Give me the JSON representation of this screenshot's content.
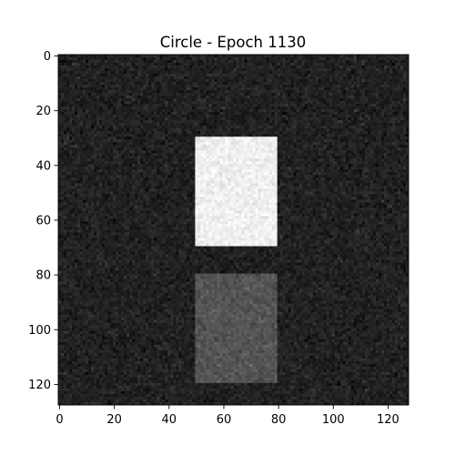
{
  "chart_data": {
    "type": "heatmap",
    "title": "Circle - Epoch 1130",
    "xlabel": "",
    "ylabel": "",
    "image_size": [
      128,
      128
    ],
    "colormap": "gray",
    "value_range": [
      0,
      1
    ],
    "xlim": [
      -0.5,
      127.5
    ],
    "ylim": [
      127.5,
      -0.5
    ],
    "x_ticks": [
      0,
      20,
      40,
      60,
      80,
      100,
      120
    ],
    "y_ticks": [
      0,
      20,
      40,
      60,
      80,
      100,
      120
    ],
    "background": {
      "mean_intensity": 0.13,
      "noise_std": 0.035
    },
    "regions": [
      {
        "name": "bright rectangle",
        "x_range": [
          50,
          80
        ],
        "y_range": [
          30,
          70
        ],
        "intensity": 0.94
      },
      {
        "name": "dim rectangle",
        "x_range": [
          50,
          80
        ],
        "y_range": [
          80,
          120
        ],
        "intensity": 0.33
      }
    ],
    "grid": false,
    "legend": "none"
  }
}
